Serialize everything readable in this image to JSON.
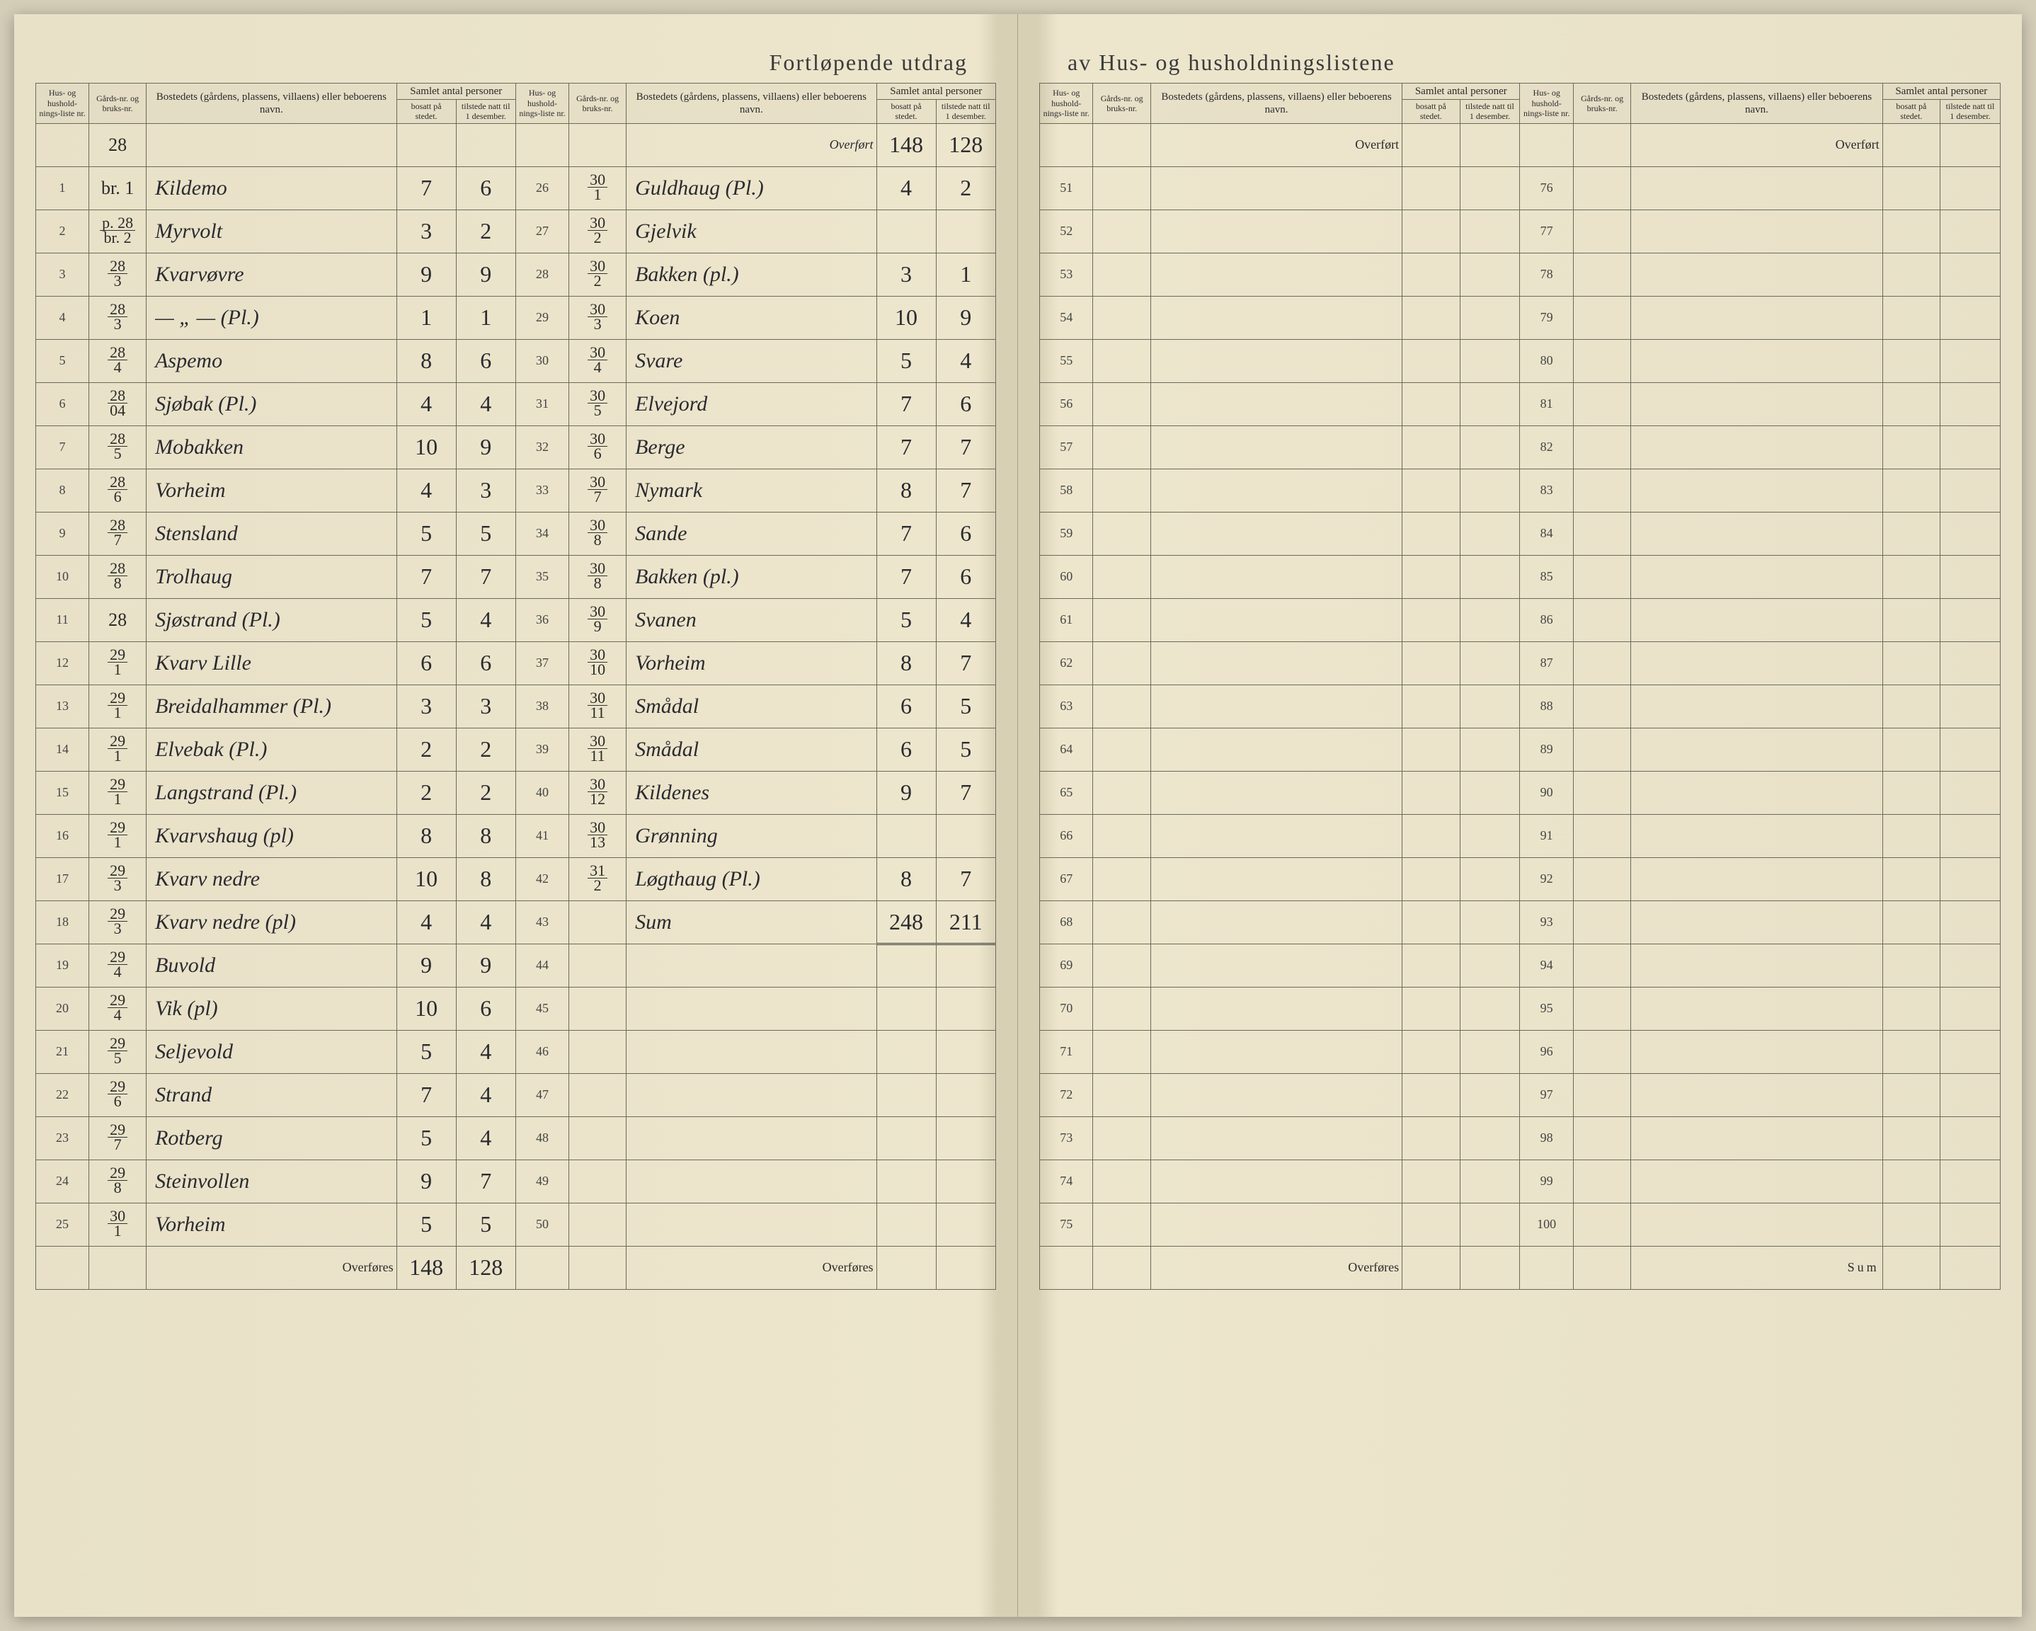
{
  "title_left": "Fortløpende utdrag",
  "title_right": "av Hus- og husholdningslistene",
  "headers": {
    "liste": "Hus- og hushold-nings-liste nr.",
    "gard": "Gårds-nr. og bruks-nr.",
    "bosted": "Bostedets (gårdens, plassens, villaens) eller beboerens navn.",
    "samlet": "Samlet antal personer",
    "bosatt": "bosatt på stedet.",
    "tilstede": "tilstede natt til 1 desember."
  },
  "overfort": "Overført",
  "overfores": "Overføres",
  "sum": "Sum",
  "overfort_vals": {
    "bosatt": "148",
    "tilstede": "128"
  },
  "head_row": {
    "gard_top": "28",
    "gard_bot": ""
  },
  "left_col1": [
    {
      "n": "1",
      "gt": "",
      "gb": "br. 1",
      "name": "Kildemo",
      "b": "7",
      "t": "6"
    },
    {
      "n": "2",
      "gt": "p. 28",
      "gb": "br. 2",
      "name": "Myrvolt",
      "b": "3",
      "t": "2"
    },
    {
      "n": "3",
      "gt": "28",
      "gb": "3",
      "name": "Kvarvøvre",
      "b": "9",
      "t": "9"
    },
    {
      "n": "4",
      "gt": "28",
      "gb": "3",
      "name": "— „ — (Pl.)",
      "b": "1",
      "t": "1"
    },
    {
      "n": "5",
      "gt": "28",
      "gb": "4",
      "name": "Aspemo",
      "b": "8",
      "t": "6"
    },
    {
      "n": "6",
      "gt": "28",
      "gb": "04",
      "name": "Sjøbak (Pl.)",
      "b": "4",
      "t": "4"
    },
    {
      "n": "7",
      "gt": "28",
      "gb": "5",
      "name": "Mobakken",
      "b": "10",
      "t": "9"
    },
    {
      "n": "8",
      "gt": "28",
      "gb": "6",
      "name": "Vorheim",
      "b": "4",
      "t": "3"
    },
    {
      "n": "9",
      "gt": "28",
      "gb": "7",
      "name": "Stensland",
      "b": "5",
      "t": "5"
    },
    {
      "n": "10",
      "gt": "28",
      "gb": "8",
      "name": "Trolhaug",
      "b": "7",
      "t": "7"
    },
    {
      "n": "11",
      "gt": "28",
      "gb": "",
      "name": "Sjøstrand (Pl.)",
      "b": "5",
      "t": "4"
    },
    {
      "n": "12",
      "gt": "29",
      "gb": "1",
      "name": "Kvarv Lille",
      "b": "6",
      "t": "6"
    },
    {
      "n": "13",
      "gt": "29",
      "gb": "1",
      "name": "Breidalhammer (Pl.)",
      "b": "3",
      "t": "3"
    },
    {
      "n": "14",
      "gt": "29",
      "gb": "1",
      "name": "Elvebak (Pl.)",
      "b": "2",
      "t": "2"
    },
    {
      "n": "15",
      "gt": "29",
      "gb": "1",
      "name": "Langstrand (Pl.)",
      "b": "2",
      "t": "2"
    },
    {
      "n": "16",
      "gt": "29",
      "gb": "1",
      "name": "Kvarvshaug (pl)",
      "b": "8",
      "t": "8"
    },
    {
      "n": "17",
      "gt": "29",
      "gb": "3",
      "name": "Kvarv nedre",
      "b": "10",
      "t": "8"
    },
    {
      "n": "18",
      "gt": "29",
      "gb": "3",
      "name": "Kvarv nedre (pl)",
      "b": "4",
      "t": "4"
    },
    {
      "n": "19",
      "gt": "29",
      "gb": "4",
      "name": "Buvold",
      "b": "9",
      "t": "9"
    },
    {
      "n": "20",
      "gt": "29",
      "gb": "4",
      "name": "Vik   (pl)",
      "b": "10",
      "t": "6"
    },
    {
      "n": "21",
      "gt": "29",
      "gb": "5",
      "name": "Seljevold",
      "b": "5",
      "t": "4"
    },
    {
      "n": "22",
      "gt": "29",
      "gb": "6",
      "name": "Strand",
      "b": "7",
      "t": "4"
    },
    {
      "n": "23",
      "gt": "29",
      "gb": "7",
      "name": "Rotberg",
      "b": "5",
      "t": "4"
    },
    {
      "n": "24",
      "gt": "29",
      "gb": "8",
      "name": "Steinvollen",
      "b": "9",
      "t": "7"
    },
    {
      "n": "25",
      "gt": "30",
      "gb": "1",
      "name": "Vorheim",
      "b": "5",
      "t": "5"
    }
  ],
  "left_footer": {
    "b": "148",
    "t": "128"
  },
  "left_col2": [
    {
      "n": "26",
      "gt": "30",
      "gb": "1",
      "name": "Guldhaug (Pl.)",
      "b": "4",
      "t": "2"
    },
    {
      "n": "27",
      "gt": "30",
      "gb": "2",
      "name": "Gjelvik",
      "b": "",
      "t": ""
    },
    {
      "n": "28",
      "gt": "30",
      "gb": "2",
      "name": "Bakken (pl.)",
      "b": "3",
      "t": "1"
    },
    {
      "n": "29",
      "gt": "30",
      "gb": "3",
      "name": "Koen",
      "b": "10",
      "t": "9"
    },
    {
      "n": "30",
      "gt": "30",
      "gb": "4",
      "name": "Svare",
      "b": "5",
      "t": "4"
    },
    {
      "n": "31",
      "gt": "30",
      "gb": "5",
      "name": "Elvejord",
      "b": "7",
      "t": "6"
    },
    {
      "n": "32",
      "gt": "30",
      "gb": "6",
      "name": "Berge",
      "b": "7",
      "t": "7"
    },
    {
      "n": "33",
      "gt": "30",
      "gb": "7",
      "name": "Nymark",
      "b": "8",
      "t": "7"
    },
    {
      "n": "34",
      "gt": "30",
      "gb": "8",
      "name": "Sande",
      "b": "7",
      "t": "6"
    },
    {
      "n": "35",
      "gt": "30",
      "gb": "8",
      "name": "Bakken (pl.)",
      "b": "7",
      "t": "6"
    },
    {
      "n": "36",
      "gt": "30",
      "gb": "9",
      "name": "Svanen",
      "b": "5",
      "t": "4"
    },
    {
      "n": "37",
      "gt": "30",
      "gb": "10",
      "name": "Vorheim",
      "b": "8",
      "t": "7"
    },
    {
      "n": "38",
      "gt": "30",
      "gb": "11",
      "name": "Smådal",
      "b": "6",
      "t": "5"
    },
    {
      "n": "39",
      "gt": "30",
      "gb": "11",
      "name": "Smådal",
      "b": "6",
      "t": "5"
    },
    {
      "n": "40",
      "gt": "30",
      "gb": "12",
      "name": "Kildenes",
      "b": "9",
      "t": "7"
    },
    {
      "n": "41",
      "gt": "30",
      "gb": "13",
      "name": "Grønning",
      "b": "",
      "t": ""
    },
    {
      "n": "42",
      "gt": "31",
      "gb": "2",
      "name": "Løgthaug (Pl.)",
      "b": "8",
      "t": "7"
    },
    {
      "n": "43",
      "gt": "",
      "gb": "",
      "name": "Sum",
      "b": "248",
      "t": "211"
    },
    {
      "n": "44",
      "gt": "",
      "gb": "",
      "name": "",
      "b": "",
      "t": ""
    },
    {
      "n": "45",
      "gt": "",
      "gb": "",
      "name": "",
      "b": "",
      "t": ""
    },
    {
      "n": "46",
      "gt": "",
      "gb": "",
      "name": "",
      "b": "",
      "t": ""
    },
    {
      "n": "47",
      "gt": "",
      "gb": "",
      "name": "",
      "b": "",
      "t": ""
    },
    {
      "n": "48",
      "gt": "",
      "gb": "",
      "name": "",
      "b": "",
      "t": ""
    },
    {
      "n": "49",
      "gt": "",
      "gb": "",
      "name": "",
      "b": "",
      "t": ""
    },
    {
      "n": "50",
      "gt": "",
      "gb": "",
      "name": "",
      "b": "",
      "t": ""
    }
  ],
  "right_col1_start": 51,
  "right_col2_start": 76,
  "right_rows": 25
}
